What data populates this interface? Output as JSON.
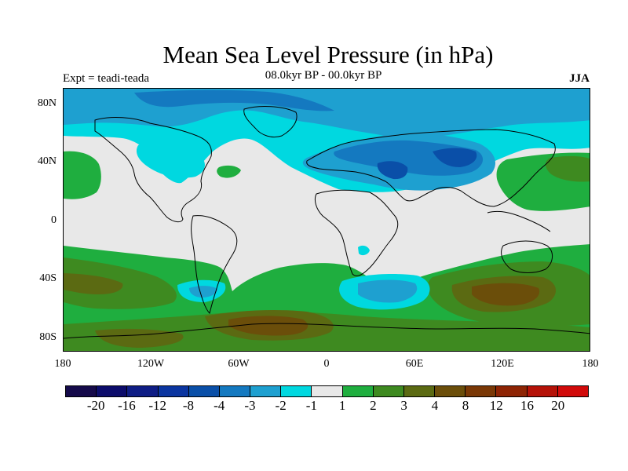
{
  "title": "Mean Sea Level Pressure (in hPa)",
  "experiment": "Expt = teadi-teada",
  "subtitle": "08.0kyr BP - 00.0kyr BP",
  "season": "JJA",
  "y_axis_labels": [
    "80N",
    "40N",
    "0",
    "40S",
    "80S"
  ],
  "x_axis_labels": [
    "180",
    "120W",
    "60W",
    "0",
    "60E",
    "120E",
    "180"
  ],
  "colorbar": {
    "colors": [
      "#150a4a",
      "#0c0c6b",
      "#0f1d85",
      "#0b35a0",
      "#0a4fa8",
      "#1479c0",
      "#1ea0d0",
      "#00d8e0",
      "#e8e8e8",
      "#1fae3f",
      "#3e8a20",
      "#5b6a12",
      "#6b4e0a",
      "#7a3806",
      "#8e2404",
      "#b51208",
      "#d10a0a"
    ],
    "labels": [
      "-20",
      "-16",
      "-12",
      "-8",
      "-4",
      "-3",
      "-2",
      "-1",
      "1",
      "2",
      "3",
      "4",
      "8",
      "12",
      "16",
      "20"
    ]
  },
  "palette": {
    "land_outline": "#000000",
    "neutral": "#e8e8e8"
  }
}
